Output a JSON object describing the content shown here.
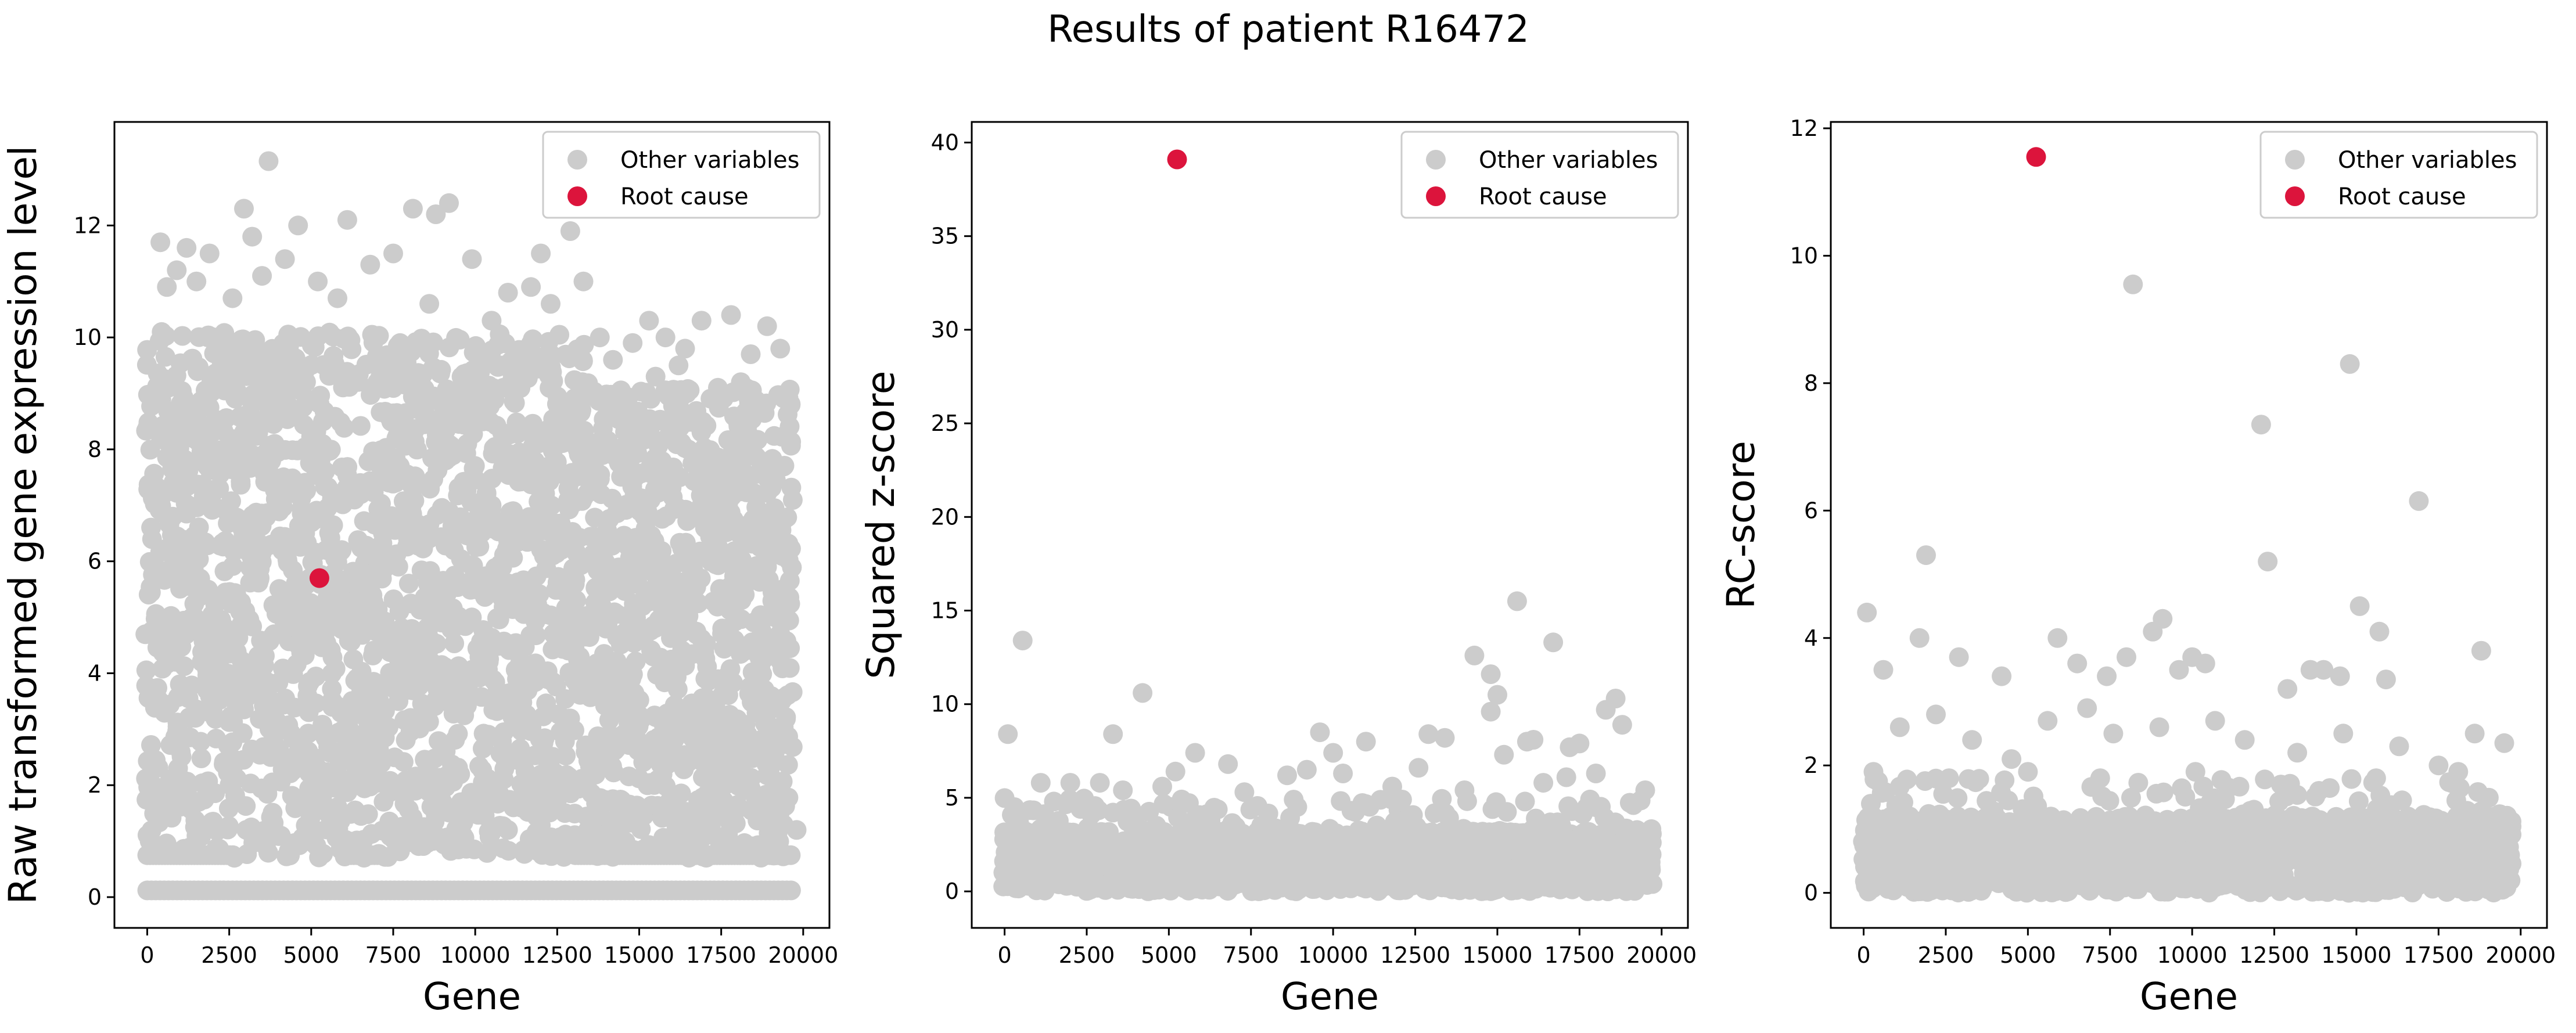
{
  "figure_title": "Results of patient R16472",
  "colors": {
    "other": "#cccccc",
    "root": "#dc143c",
    "axis": "#000000",
    "legend_border": "#cccccc"
  },
  "chart_data": [
    {
      "type": "scatter",
      "title": "",
      "xlabel": "Gene",
      "ylabel": "Raw transformed gene expression level",
      "xlim": [
        -1000,
        20800
      ],
      "ylim": [
        -0.55,
        13.85
      ],
      "xticks": [
        0,
        2500,
        5000,
        7500,
        10000,
        12500,
        15000,
        17500,
        20000
      ],
      "yticks": [
        0,
        2,
        4,
        6,
        8,
        10,
        12
      ],
      "legend": {
        "position": "top-right",
        "entries": [
          "Other variables",
          "Root cause"
        ]
      },
      "distribution": "dense",
      "series": [
        {
          "name": "Other variables",
          "points": [
            [
              3700,
              13.15
            ],
            [
              2950,
              12.3
            ],
            [
              4600,
              12.0
            ],
            [
              6100,
              12.1
            ],
            [
              8100,
              12.3
            ],
            [
              8800,
              12.2
            ],
            [
              9200,
              12.4
            ],
            [
              12900,
              11.9
            ],
            [
              400,
              11.7
            ],
            [
              1200,
              11.6
            ],
            [
              1900,
              11.5
            ],
            [
              3200,
              11.8
            ],
            [
              4200,
              11.4
            ],
            [
              5200,
              11.0
            ],
            [
              6800,
              11.3
            ],
            [
              7500,
              11.5
            ],
            [
              9900,
              11.4
            ],
            [
              11000,
              10.8
            ],
            [
              12000,
              11.5
            ],
            [
              13300,
              11.0
            ],
            [
              600,
              10.9
            ],
            [
              900,
              11.2
            ],
            [
              1500,
              11.0
            ],
            [
              2600,
              10.7
            ],
            [
              3500,
              11.1
            ],
            [
              5800,
              10.7
            ],
            [
              8600,
              10.6
            ],
            [
              10500,
              10.3
            ],
            [
              11700,
              10.9
            ],
            [
              12300,
              10.6
            ],
            [
              13800,
              10.0
            ],
            [
              14800,
              9.9
            ],
            [
              15300,
              10.3
            ],
            [
              15800,
              10.0
            ],
            [
              16400,
              9.8
            ],
            [
              16900,
              10.3
            ],
            [
              17800,
              10.4
            ],
            [
              18400,
              9.7
            ],
            [
              18900,
              10.2
            ],
            [
              19300,
              9.8
            ],
            [
              14200,
              9.6
            ],
            [
              15500,
              9.3
            ],
            [
              16200,
              9.5
            ],
            [
              17400,
              9.1
            ],
            [
              18100,
              9.2
            ],
            [
              19500,
              9.0
            ],
            [
              300,
              1.9
            ],
            [
              5800,
              1.5
            ],
            [
              9000,
              1.7
            ],
            [
              12500,
              1.6
            ],
            [
              16000,
              1.4
            ],
            [
              19800,
              1.2
            ],
            [
              1500,
              1.1
            ],
            [
              11000,
              1.2
            ]
          ]
        },
        {
          "name": "Root cause",
          "points": [
            [
              5250,
              5.7
            ]
          ]
        }
      ]
    },
    {
      "type": "scatter",
      "title": "",
      "xlabel": "Gene",
      "ylabel": "Squared z-score",
      "xlim": [
        -1000,
        20800
      ],
      "ylim": [
        -1.95,
        41.1
      ],
      "xticks": [
        0,
        2500,
        5000,
        7500,
        10000,
        12500,
        15000,
        17500,
        20000
      ],
      "yticks": [
        0,
        5,
        10,
        15,
        20,
        25,
        30,
        35,
        40
      ],
      "legend": {
        "position": "top-right",
        "entries": [
          "Other variables",
          "Root cause"
        ]
      },
      "distribution": "sparse",
      "series": [
        {
          "name": "Other variables",
          "points": [
            [
              100,
              8.4
            ],
            [
              550,
              13.4
            ],
            [
              3300,
              8.4
            ],
            [
              4200,
              10.6
            ],
            [
              5200,
              6.4
            ],
            [
              5800,
              7.4
            ],
            [
              6800,
              6.8
            ],
            [
              9600,
              8.5
            ],
            [
              10000,
              7.4
            ],
            [
              11000,
              8.0
            ],
            [
              12900,
              8.4
            ],
            [
              13400,
              8.2
            ],
            [
              14300,
              12.6
            ],
            [
              14800,
              11.6
            ],
            [
              15000,
              10.5
            ],
            [
              15600,
              15.5
            ],
            [
              15900,
              8.0
            ],
            [
              16700,
              13.3
            ],
            [
              17200,
              7.7
            ],
            [
              17500,
              7.9
            ],
            [
              18300,
              9.7
            ],
            [
              18600,
              10.3
            ],
            [
              18800,
              8.9
            ],
            [
              14800,
              9.6
            ],
            [
              15200,
              7.3
            ],
            [
              16100,
              8.1
            ],
            [
              1100,
              5.8
            ],
            [
              2000,
              5.8
            ],
            [
              2900,
              5.8
            ],
            [
              3600,
              5.4
            ],
            [
              4800,
              5.6
            ],
            [
              7300,
              5.3
            ],
            [
              8600,
              6.2
            ],
            [
              9200,
              6.5
            ],
            [
              10300,
              6.3
            ],
            [
              11800,
              5.6
            ],
            [
              12600,
              6.6
            ],
            [
              14000,
              5.4
            ],
            [
              16400,
              5.8
            ],
            [
              17100,
              6.1
            ],
            [
              18000,
              6.3
            ],
            [
              19500,
              5.4
            ],
            [
              300,
              4.5
            ],
            [
              1500,
              4.8
            ]
          ]
        },
        {
          "name": "Root cause",
          "points": [
            [
              5250,
              39.1
            ]
          ]
        }
      ]
    },
    {
      "type": "scatter",
      "title": "",
      "xlabel": "Gene",
      "ylabel": "RC-score",
      "xlim": [
        -1000,
        20800
      ],
      "ylim": [
        -0.55,
        12.1
      ],
      "xticks": [
        0,
        2500,
        5000,
        7500,
        10000,
        12500,
        15000,
        17500,
        20000
      ],
      "yticks": [
        0,
        2,
        4,
        6,
        8,
        10,
        12
      ],
      "legend": {
        "position": "top-right",
        "entries": [
          "Other variables",
          "Root cause"
        ]
      },
      "distribution": "sparse",
      "series": [
        {
          "name": "Other variables",
          "points": [
            [
              100,
              4.4
            ],
            [
              600,
              3.5
            ],
            [
              1700,
              4.0
            ],
            [
              1900,
              5.3
            ],
            [
              2900,
              3.7
            ],
            [
              4200,
              3.4
            ],
            [
              5900,
              4.0
            ],
            [
              6500,
              3.6
            ],
            [
              7400,
              3.4
            ],
            [
              8000,
              3.7
            ],
            [
              8200,
              9.55
            ],
            [
              8800,
              4.1
            ],
            [
              9100,
              4.3
            ],
            [
              9600,
              3.5
            ],
            [
              10000,
              3.7
            ],
            [
              10400,
              3.6
            ],
            [
              12100,
              7.35
            ],
            [
              12300,
              5.2
            ],
            [
              12900,
              3.2
            ],
            [
              13600,
              3.5
            ],
            [
              14000,
              3.5
            ],
            [
              14500,
              3.4
            ],
            [
              14800,
              8.3
            ],
            [
              15100,
              4.5
            ],
            [
              15700,
              4.1
            ],
            [
              15900,
              3.35
            ],
            [
              16900,
              6.15
            ],
            [
              18800,
              3.8
            ],
            [
              1100,
              2.6
            ],
            [
              2200,
              2.8
            ],
            [
              3300,
              2.4
            ],
            [
              4500,
              2.1
            ],
            [
              5600,
              2.7
            ],
            [
              6800,
              2.9
            ],
            [
              7600,
              2.5
            ],
            [
              9000,
              2.6
            ],
            [
              10700,
              2.7
            ],
            [
              11600,
              2.4
            ],
            [
              13200,
              2.2
            ],
            [
              14600,
              2.5
            ],
            [
              16300,
              2.3
            ],
            [
              17500,
              2.0
            ],
            [
              18600,
              2.5
            ],
            [
              19500,
              2.35
            ],
            [
              300,
              1.9
            ],
            [
              2600,
              1.8
            ],
            [
              5000,
              1.9
            ],
            [
              7200,
              1.8
            ],
            [
              10100,
              1.9
            ],
            [
              12700,
              1.7
            ],
            [
              15600,
              1.8
            ],
            [
              18100,
              1.9
            ]
          ]
        },
        {
          "name": "Root cause",
          "points": [
            [
              5250,
              11.55
            ]
          ]
        }
      ]
    }
  ]
}
